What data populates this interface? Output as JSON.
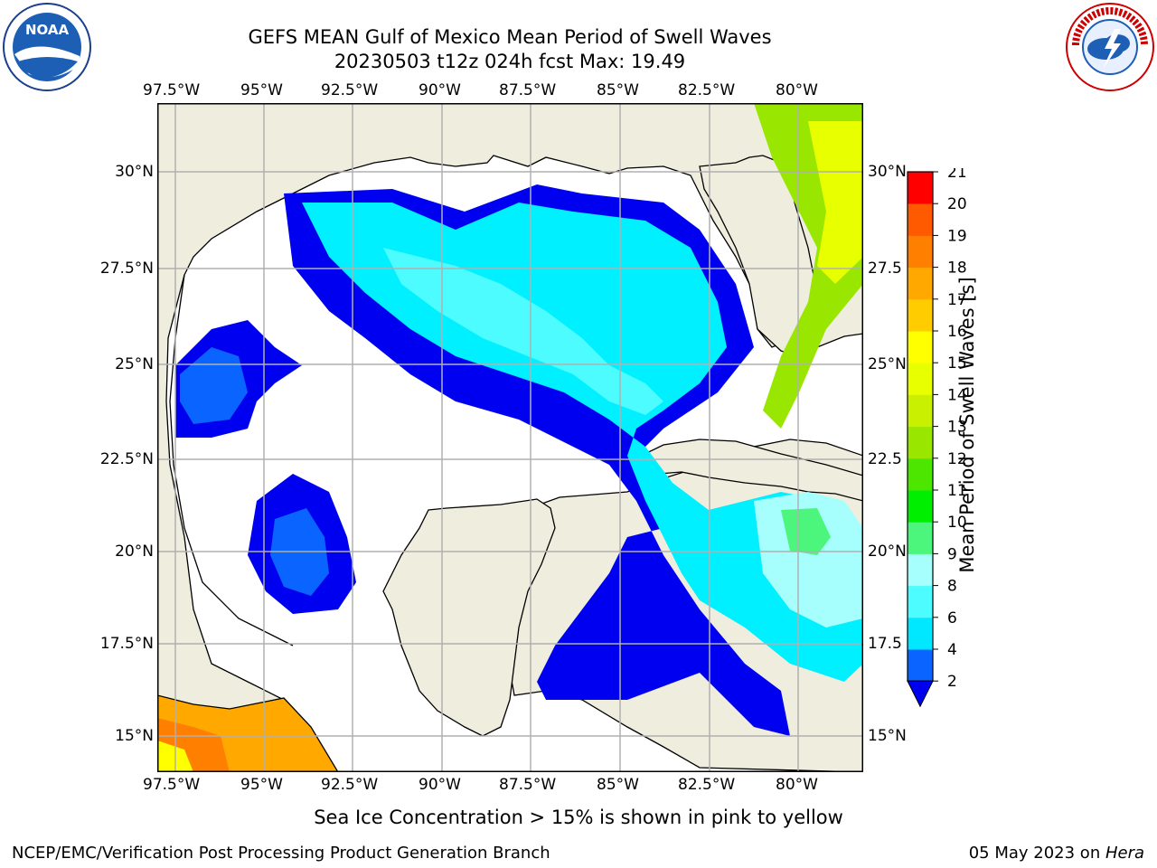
{
  "header": {
    "title_line1": "GEFS MEAN Gulf of Mexico Mean Period of Swell Waves",
    "title_line2": "20230503 t12z 024h fcst   Max: 19.49"
  },
  "logos": {
    "noaa_text": "NOAA",
    "noaa_ring": "NATIONAL OCEANIC AND ATMOSPHERIC ADMINISTRATION · U.S. DEPARTMENT OF COMMERCE",
    "nws_ring": "NATIONAL WEATHER SERVICE"
  },
  "map": {
    "lon_ticks": [
      "97.5°W",
      "95°W",
      "92.5°W",
      "90°W",
      "87.5°W",
      "85°W",
      "82.5°W",
      "80°W"
    ],
    "lat_ticks_left": [
      "30°N",
      "27.5°N",
      "25°N",
      "22.5°N",
      "20°N",
      "17.5°N",
      "15°N"
    ],
    "lat_ticks_right": [
      "30°N",
      "27.5",
      "25°N",
      "22.5",
      "20°N",
      "17.5",
      "15°N"
    ],
    "land_color": "#efedde",
    "ocean_missing_color": "#ffffff",
    "grid": true
  },
  "chart_data": {
    "type": "heatmap",
    "title": "GEFS MEAN Gulf of Mexico Mean Period of Swell Waves",
    "subtitle": "20230503 t12z 024h fcst   Max: 19.49",
    "max_value": 19.49,
    "colorbar": {
      "label": "Mean Period of Swell Waves [s]",
      "ticks": [
        "2",
        "4",
        "6",
        "8",
        "9",
        "10",
        "11",
        "12",
        "13",
        "14",
        "15",
        "16",
        "17",
        "18",
        "19",
        "20",
        "21"
      ],
      "levels": [
        2,
        4,
        6,
        8,
        9,
        10,
        11,
        12,
        13,
        14,
        15,
        16,
        17,
        18,
        19,
        20,
        21
      ],
      "colors": [
        "#0a64ff",
        "#00e8ff",
        "#4cfcff",
        "#a6fffc",
        "#4cf57c",
        "#00ee00",
        "#4ce600",
        "#99e600",
        "#c8f000",
        "#e8ff00",
        "#ffff00",
        "#ffcc00",
        "#ffa800",
        "#ff8000",
        "#ff5a00",
        "#ff2800",
        "#ff0000"
      ],
      "extend_low_color": "#0000f0"
    }
  },
  "note": "Sea Ice Concentration > 15% is shown in pink to yellow",
  "footer": {
    "left": "NCEP/EMC/Verification Post Processing Product Generation Branch",
    "date": "05 May 2023 on ",
    "host": "Hera"
  }
}
